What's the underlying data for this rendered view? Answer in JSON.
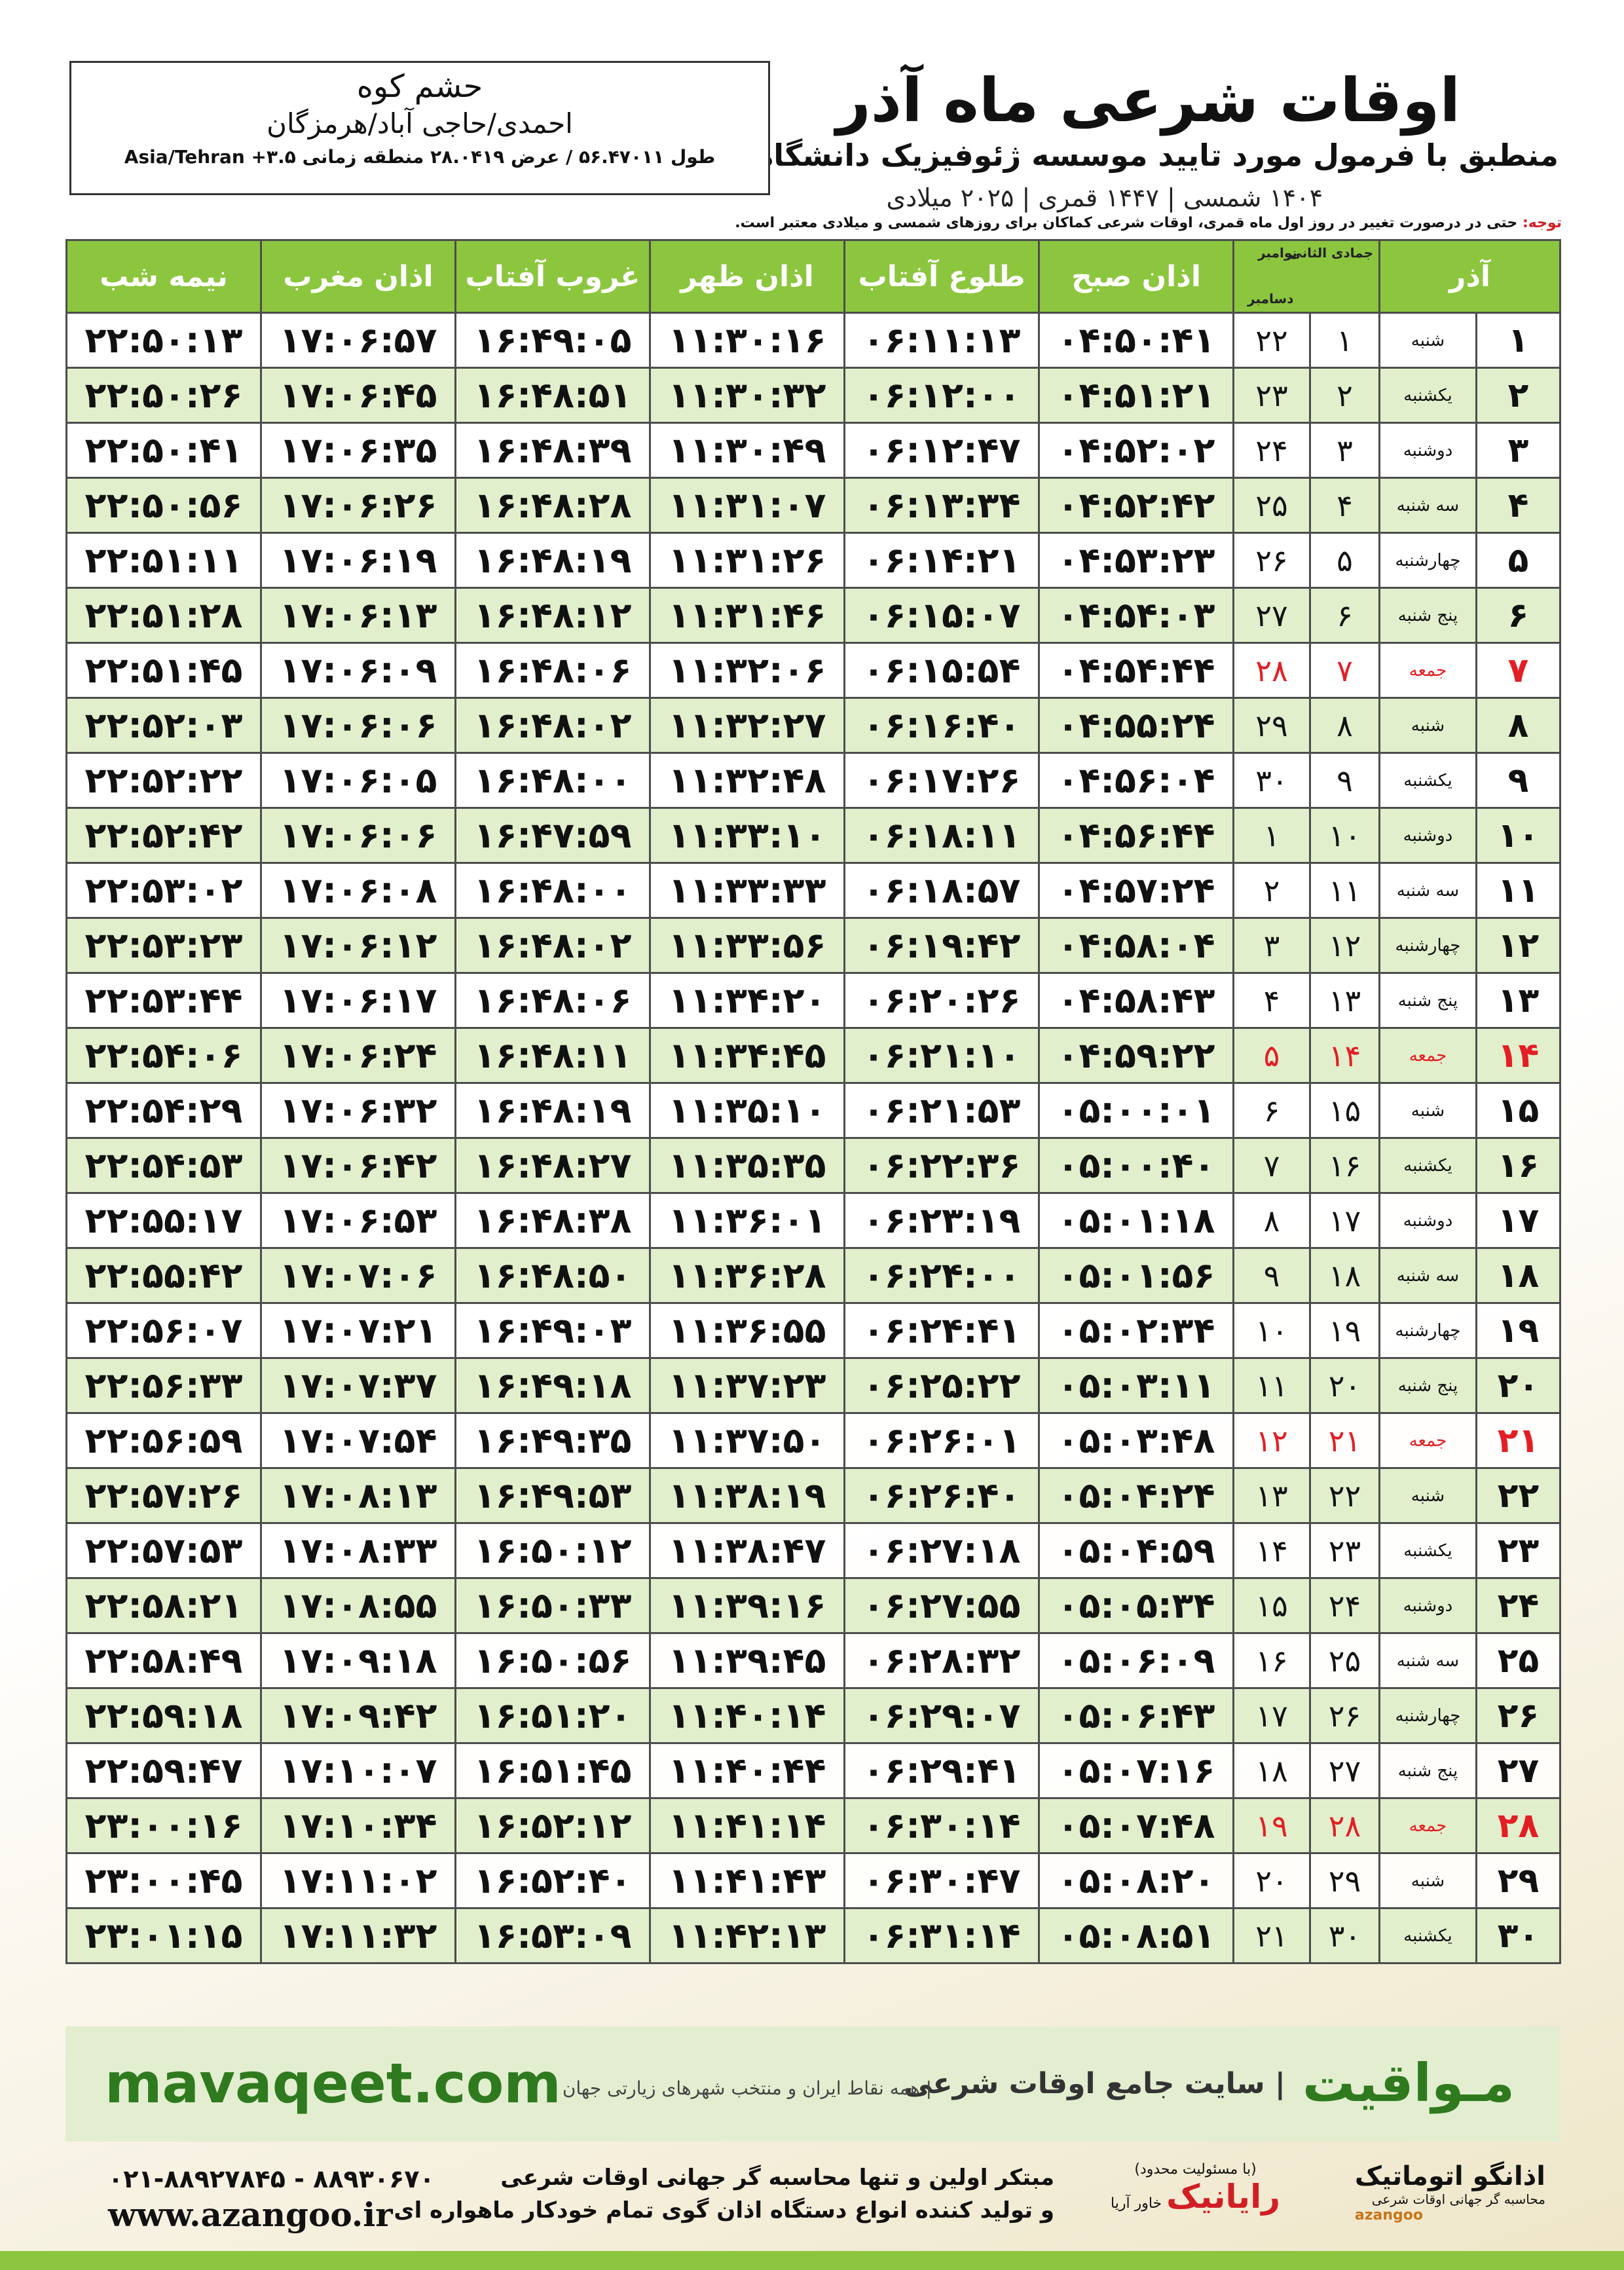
{
  "header": {
    "title": "اوقات شرعی ماه آذر",
    "subtitle": "منطبق با فرمول مورد تایید موسسه ژئوفیزیک دانشگاه تهران",
    "dates": "۱۴۰۴ شمسی | ۱۴۴۷ قمری | ۲۰۲۵ میلادی"
  },
  "place": {
    "city": "حشم کوه",
    "region": "احمدی/حاجی آباد/هرمزگان",
    "coords": "طول ۵۶.۴۷۰۱۱ / عرض ۲۸.۰۴۱۹ منطقه زمانی ۳.۵+ Asia/Tehran"
  },
  "note": {
    "lead": "توجه:",
    "text": "حتی در درصورت تغییر در روز اول ماه قمری، اوقات شرعی کماکان برای روزهای شمسی و میلادی معتبر است."
  },
  "table": {
    "header": {
      "month": "آذر",
      "hijri_month": "جمادی الثانی",
      "greg_months": [
        "نوامبر",
        "دسامبر"
      ],
      "times": [
        "اذان صبح",
        "طلوع آفتاب",
        "اذان ظهر",
        "غروب آفتاب",
        "اذان مغرب",
        "نیمه شب"
      ]
    },
    "holiday_rows": [
      6,
      13,
      20,
      27
    ],
    "rows": [
      [
        "۱",
        "شنبه",
        "۱",
        "۲۲",
        "۰۴:۵۰:۴۱",
        "۰۶:۱۱:۱۳",
        "۱۱:۳۰:۱۶",
        "۱۶:۴۹:۰۵",
        "۱۷:۰۶:۵۷",
        "۲۲:۵۰:۱۳"
      ],
      [
        "۲",
        "یکشنبه",
        "۲",
        "۲۳",
        "۰۴:۵۱:۲۱",
        "۰۶:۱۲:۰۰",
        "۱۱:۳۰:۳۲",
        "۱۶:۴۸:۵۱",
        "۱۷:۰۶:۴۵",
        "۲۲:۵۰:۲۶"
      ],
      [
        "۳",
        "دوشنبه",
        "۳",
        "۲۴",
        "۰۴:۵۲:۰۲",
        "۰۶:۱۲:۴۷",
        "۱۱:۳۰:۴۹",
        "۱۶:۴۸:۳۹",
        "۱۷:۰۶:۳۵",
        "۲۲:۵۰:۴۱"
      ],
      [
        "۴",
        "سه شنبه",
        "۴",
        "۲۵",
        "۰۴:۵۲:۴۲",
        "۰۶:۱۳:۳۴",
        "۱۱:۳۱:۰۷",
        "۱۶:۴۸:۲۸",
        "۱۷:۰۶:۲۶",
        "۲۲:۵۰:۵۶"
      ],
      [
        "۵",
        "چهارشنبه",
        "۵",
        "۲۶",
        "۰۴:۵۳:۲۳",
        "۰۶:۱۴:۲۱",
        "۱۱:۳۱:۲۶",
        "۱۶:۴۸:۱۹",
        "۱۷:۰۶:۱۹",
        "۲۲:۵۱:۱۱"
      ],
      [
        "۶",
        "پنج شنبه",
        "۶",
        "۲۷",
        "۰۴:۵۴:۰۳",
        "۰۶:۱۵:۰۷",
        "۱۱:۳۱:۴۶",
        "۱۶:۴۸:۱۲",
        "۱۷:۰۶:۱۳",
        "۲۲:۵۱:۲۸"
      ],
      [
        "۷",
        "جمعه",
        "۷",
        "۲۸",
        "۰۴:۵۴:۴۴",
        "۰۶:۱۵:۵۴",
        "۱۱:۳۲:۰۶",
        "۱۶:۴۸:۰۶",
        "۱۷:۰۶:۰۹",
        "۲۲:۵۱:۴۵"
      ],
      [
        "۸",
        "شنبه",
        "۸",
        "۲۹",
        "۰۴:۵۵:۲۴",
        "۰۶:۱۶:۴۰",
        "۱۱:۳۲:۲۷",
        "۱۶:۴۸:۰۲",
        "۱۷:۰۶:۰۶",
        "۲۲:۵۲:۰۳"
      ],
      [
        "۹",
        "یکشنبه",
        "۹",
        "۳۰",
        "۰۴:۵۶:۰۴",
        "۰۶:۱۷:۲۶",
        "۱۱:۳۲:۴۸",
        "۱۶:۴۸:۰۰",
        "۱۷:۰۶:۰۵",
        "۲۲:۵۲:۲۲"
      ],
      [
        "۱۰",
        "دوشنبه",
        "۱۰",
        "۱",
        "۰۴:۵۶:۴۴",
        "۰۶:۱۸:۱۱",
        "۱۱:۳۳:۱۰",
        "۱۶:۴۷:۵۹",
        "۱۷:۰۶:۰۶",
        "۲۲:۵۲:۴۲"
      ],
      [
        "۱۱",
        "سه شنبه",
        "۱۱",
        "۲",
        "۰۴:۵۷:۲۴",
        "۰۶:۱۸:۵۷",
        "۱۱:۳۳:۳۳",
        "۱۶:۴۸:۰۰",
        "۱۷:۰۶:۰۸",
        "۲۲:۵۳:۰۲"
      ],
      [
        "۱۲",
        "چهارشنبه",
        "۱۲",
        "۳",
        "۰۴:۵۸:۰۴",
        "۰۶:۱۹:۴۲",
        "۱۱:۳۳:۵۶",
        "۱۶:۴۸:۰۲",
        "۱۷:۰۶:۱۲",
        "۲۲:۵۳:۲۳"
      ],
      [
        "۱۳",
        "پنج شنبه",
        "۱۳",
        "۴",
        "۰۴:۵۸:۴۳",
        "۰۶:۲۰:۲۶",
        "۱۱:۳۴:۲۰",
        "۱۶:۴۸:۰۶",
        "۱۷:۰۶:۱۷",
        "۲۲:۵۳:۴۴"
      ],
      [
        "۱۴",
        "جمعه",
        "۱۴",
        "۵",
        "۰۴:۵۹:۲۲",
        "۰۶:۲۱:۱۰",
        "۱۱:۳۴:۴۵",
        "۱۶:۴۸:۱۱",
        "۱۷:۰۶:۲۴",
        "۲۲:۵۴:۰۶"
      ],
      [
        "۱۵",
        "شنبه",
        "۱۵",
        "۶",
        "۰۵:۰۰:۰۱",
        "۰۶:۲۱:۵۳",
        "۱۱:۳۵:۱۰",
        "۱۶:۴۸:۱۹",
        "۱۷:۰۶:۳۲",
        "۲۲:۵۴:۲۹"
      ],
      [
        "۱۶",
        "یکشنبه",
        "۱۶",
        "۷",
        "۰۵:۰۰:۴۰",
        "۰۶:۲۲:۳۶",
        "۱۱:۳۵:۳۵",
        "۱۶:۴۸:۲۷",
        "۱۷:۰۶:۴۲",
        "۲۲:۵۴:۵۳"
      ],
      [
        "۱۷",
        "دوشنبه",
        "۱۷",
        "۸",
        "۰۵:۰۱:۱۸",
        "۰۶:۲۳:۱۹",
        "۱۱:۳۶:۰۱",
        "۱۶:۴۸:۳۸",
        "۱۷:۰۶:۵۳",
        "۲۲:۵۵:۱۷"
      ],
      [
        "۱۸",
        "سه شنبه",
        "۱۸",
        "۹",
        "۰۵:۰۱:۵۶",
        "۰۶:۲۴:۰۰",
        "۱۱:۳۶:۲۸",
        "۱۶:۴۸:۵۰",
        "۱۷:۰۷:۰۶",
        "۲۲:۵۵:۴۲"
      ],
      [
        "۱۹",
        "چهارشنبه",
        "۱۹",
        "۱۰",
        "۰۵:۰۲:۳۴",
        "۰۶:۲۴:۴۱",
        "۱۱:۳۶:۵۵",
        "۱۶:۴۹:۰۳",
        "۱۷:۰۷:۲۱",
        "۲۲:۵۶:۰۷"
      ],
      [
        "۲۰",
        "پنج شنبه",
        "۲۰",
        "۱۱",
        "۰۵:۰۳:۱۱",
        "۰۶:۲۵:۲۲",
        "۱۱:۳۷:۲۳",
        "۱۶:۴۹:۱۸",
        "۱۷:۰۷:۳۷",
        "۲۲:۵۶:۳۳"
      ],
      [
        "۲۱",
        "جمعه",
        "۲۱",
        "۱۲",
        "۰۵:۰۳:۴۸",
        "۰۶:۲۶:۰۱",
        "۱۱:۳۷:۵۰",
        "۱۶:۴۹:۳۵",
        "۱۷:۰۷:۵۴",
        "۲۲:۵۶:۵۹"
      ],
      [
        "۲۲",
        "شنبه",
        "۲۲",
        "۱۳",
        "۰۵:۰۴:۲۴",
        "۰۶:۲۶:۴۰",
        "۱۱:۳۸:۱۹",
        "۱۶:۴۹:۵۳",
        "۱۷:۰۸:۱۳",
        "۲۲:۵۷:۲۶"
      ],
      [
        "۲۳",
        "یکشنبه",
        "۲۳",
        "۱۴",
        "۰۵:۰۴:۵۹",
        "۰۶:۲۷:۱۸",
        "۱۱:۳۸:۴۷",
        "۱۶:۵۰:۱۲",
        "۱۷:۰۸:۳۳",
        "۲۲:۵۷:۵۳"
      ],
      [
        "۲۴",
        "دوشنبه",
        "۲۴",
        "۱۵",
        "۰۵:۰۵:۳۴",
        "۰۶:۲۷:۵۵",
        "۱۱:۳۹:۱۶",
        "۱۶:۵۰:۳۳",
        "۱۷:۰۸:۵۵",
        "۲۲:۵۸:۲۱"
      ],
      [
        "۲۵",
        "سه شنبه",
        "۲۵",
        "۱۶",
        "۰۵:۰۶:۰۹",
        "۰۶:۲۸:۳۲",
        "۱۱:۳۹:۴۵",
        "۱۶:۵۰:۵۶",
        "۱۷:۰۹:۱۸",
        "۲۲:۵۸:۴۹"
      ],
      [
        "۲۶",
        "چهارشنبه",
        "۲۶",
        "۱۷",
        "۰۵:۰۶:۴۳",
        "۰۶:۲۹:۰۷",
        "۱۱:۴۰:۱۴",
        "۱۶:۵۱:۲۰",
        "۱۷:۰۹:۴۲",
        "۲۲:۵۹:۱۸"
      ],
      [
        "۲۷",
        "پنج شنبه",
        "۲۷",
        "۱۸",
        "۰۵:۰۷:۱۶",
        "۰۶:۲۹:۴۱",
        "۱۱:۴۰:۴۴",
        "۱۶:۵۱:۴۵",
        "۱۷:۱۰:۰۷",
        "۲۲:۵۹:۴۷"
      ],
      [
        "۲۸",
        "جمعه",
        "۲۸",
        "۱۹",
        "۰۵:۰۷:۴۸",
        "۰۶:۳۰:۱۴",
        "۱۱:۴۱:۱۴",
        "۱۶:۵۲:۱۲",
        "۱۷:۱۰:۳۴",
        "۲۳:۰۰:۱۶"
      ],
      [
        "۲۹",
        "شنبه",
        "۲۹",
        "۲۰",
        "۰۵:۰۸:۲۰",
        "۰۶:۳۰:۴۷",
        "۱۱:۴۱:۴۳",
        "۱۶:۵۲:۴۰",
        "۱۷:۱۱:۰۲",
        "۲۳:۰۰:۴۵"
      ],
      [
        "۳۰",
        "یکشنبه",
        "۳۰",
        "۲۱",
        "۰۵:۰۸:۵۱",
        "۰۶:۳۱:۱۴",
        "۱۱:۴۲:۱۳",
        "۱۶:۵۳:۰۹",
        "۱۷:۱۱:۳۲",
        "۲۳:۰۱:۱۵"
      ]
    ]
  },
  "banner": {
    "brand": "مـواقیت",
    "subtitle": "| سایت جامع اوقات شرعی",
    "note": "| همه نقاط ایران و منتخب شهرهای زیارتی جهان",
    "site": "mavaqeet.com"
  },
  "footer": {
    "phone": "۰۲۱-۸۸۹۲۷۸۴۵ - ۸۸۹۳۰۶۷۰",
    "web": "www.azangoo.ir",
    "promo_line1": "مبتکر اولین و تنها محاسبه گر جهانی اوقات شرعی",
    "promo_line2": "و تولید کننده انواع دستگاه اذان گوی تمام خودکار ماهواره ای",
    "raianik_note": "(با مسئولیت محدود)",
    "raianik": "رایانیک",
    "khavar": "خاور آریا",
    "azangoo": "اذانگو اتوماتیک",
    "azangoo_sub": "محاسبه گر جهانی اوقات شرعی",
    "azangoo_en": "azangoo"
  }
}
